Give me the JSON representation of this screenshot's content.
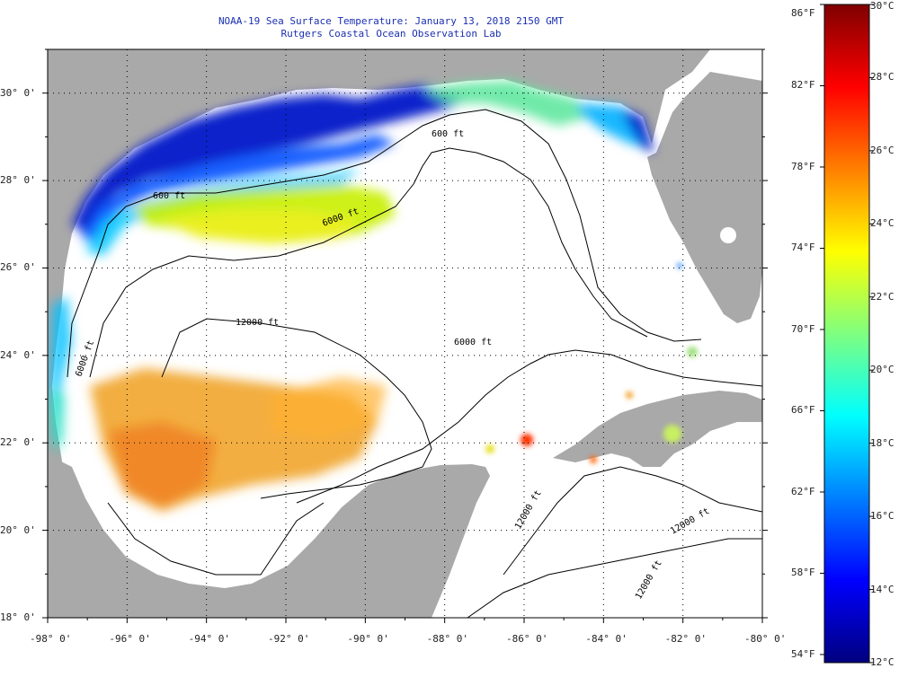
{
  "title": {
    "line1": "NOAA-19 Sea Surface Temperature:  January 13, 2018 2150 GMT",
    "line2": "Rutgers Coastal Ocean Observation Lab"
  },
  "colors": {
    "land": "#a9a9a9",
    "ocean_nodata": "#ffffff",
    "frame": "#000000",
    "contour": "#000000",
    "title": "#1a2fb0"
  },
  "map": {
    "lon_range": [
      -98,
      -80
    ],
    "lat_range": [
      18,
      31
    ],
    "lat_ticks": [
      {
        "value": 30,
        "label": "30° 0'"
      },
      {
        "value": 28,
        "label": "28° 0'"
      },
      {
        "value": 26,
        "label": "26° 0'"
      },
      {
        "value": 24,
        "label": "24° 0'"
      },
      {
        "value": 22,
        "label": "22° 0'"
      },
      {
        "value": 20,
        "label": "20° 0'"
      },
      {
        "value": 18,
        "label": "18° 0'"
      }
    ],
    "lon_ticks": [
      {
        "value": -98,
        "label": "-98° 0'"
      },
      {
        "value": -96,
        "label": "-96° 0'"
      },
      {
        "value": -94,
        "label": "-94° 0'"
      },
      {
        "value": -92,
        "label": "-92° 0'"
      },
      {
        "value": -90,
        "label": "-90° 0'"
      },
      {
        "value": -88,
        "label": "-88° 0'"
      },
      {
        "value": -86,
        "label": "-86° 0'"
      },
      {
        "value": -84,
        "label": "-84° 0'"
      },
      {
        "value": -82,
        "label": "-82° 0'"
      },
      {
        "value": -80,
        "label": "-80° 0'"
      }
    ],
    "contour_labels": [
      "600 ft",
      "600 ft",
      "6000 ft",
      "12000 ft",
      "6000 ft",
      "6000 ft",
      "12000 ft",
      "12000 ft",
      "12000 ft"
    ],
    "grid": true
  },
  "colorbar": {
    "min_c": 12,
    "max_c": 30,
    "celsius_ticks": [
      {
        "value": 30,
        "label": "30°C"
      },
      {
        "value": 28,
        "label": "28°C"
      },
      {
        "value": 26,
        "label": "26°C"
      },
      {
        "value": 24,
        "label": "24°C"
      },
      {
        "value": 22,
        "label": "22°C"
      },
      {
        "value": 20,
        "label": "20°C"
      },
      {
        "value": 18,
        "label": "18°C"
      },
      {
        "value": 16,
        "label": "16°C"
      },
      {
        "value": 14,
        "label": "14°C"
      },
      {
        "value": 12,
        "label": "12°C"
      }
    ],
    "fahrenheit_ticks": [
      {
        "value": 86,
        "label": "86°F"
      },
      {
        "value": 82,
        "label": "82°F"
      },
      {
        "value": 78,
        "label": "78°F"
      },
      {
        "value": 74,
        "label": "74°F"
      },
      {
        "value": 70,
        "label": "70°F"
      },
      {
        "value": 66,
        "label": "66°F"
      },
      {
        "value": 62,
        "label": "62°F"
      },
      {
        "value": 58,
        "label": "58°F"
      },
      {
        "value": 54,
        "label": "54°F"
      }
    ],
    "gradient": [
      "#00007f",
      "#0000ff",
      "#007fff",
      "#00ffff",
      "#7fff7f",
      "#ffff00",
      "#ff7f00",
      "#ff0000",
      "#7f0000"
    ]
  }
}
